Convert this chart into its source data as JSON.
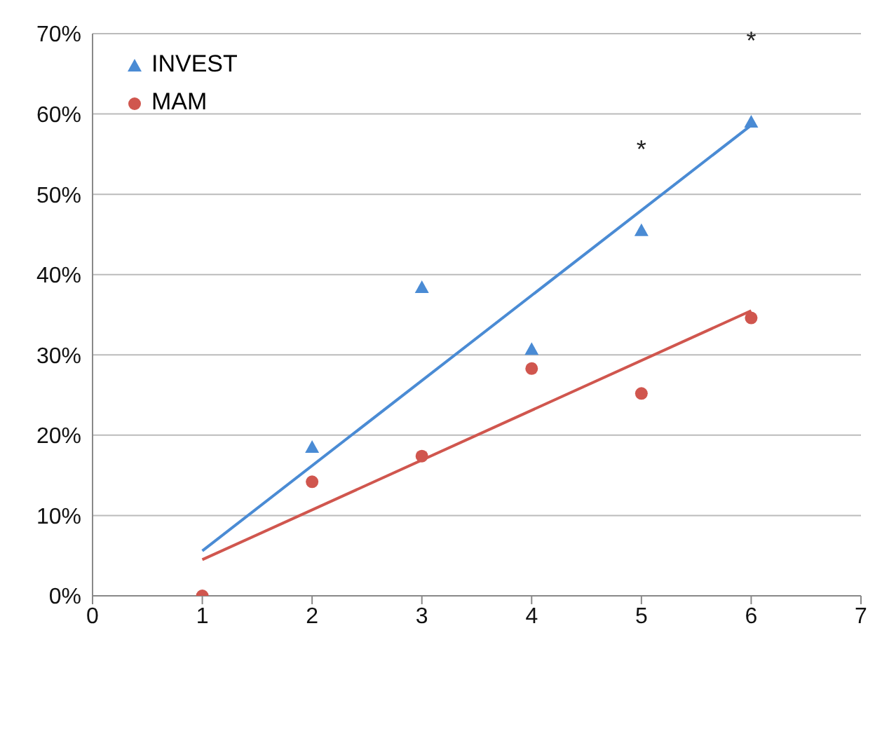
{
  "chart_data": {
    "type": "scatter",
    "xlim": [
      0,
      7
    ],
    "xticks": [
      0,
      1,
      2,
      3,
      4,
      5,
      6,
      7
    ],
    "ylim": [
      0,
      70
    ],
    "yticks": [
      {
        "value": 0,
        "label": "0%"
      },
      {
        "value": 10,
        "label": "10%"
      },
      {
        "value": 20,
        "label": "20%"
      },
      {
        "value": 30,
        "label": "30%"
      },
      {
        "value": 40,
        "label": "40%"
      },
      {
        "value": 50,
        "label": "50%"
      },
      {
        "value": 60,
        "label": "60%"
      },
      {
        "value": 70,
        "label": "70%"
      }
    ],
    "grid": "y",
    "legend": "top left",
    "series": [
      {
        "name": "INVEST",
        "color": "#4a8bd4",
        "marker": "triangle",
        "x": [
          2,
          3,
          4,
          5,
          6
        ],
        "values": [
          18.5,
          38.4,
          30.7,
          45.5,
          59.0
        ]
      },
      {
        "name": "MAM",
        "color": "#d0564e",
        "marker": "circle",
        "x": [
          1,
          2,
          3,
          4,
          5,
          6
        ],
        "values": [
          0,
          14.2,
          17.4,
          28.3,
          25.2,
          34.6
        ]
      },
      {
        "type": "line",
        "color": "#4a8bd4",
        "marker": "none",
        "x": [
          1,
          6
        ],
        "values": [
          5.6,
          58.6
        ]
      },
      {
        "type": "line",
        "color": "#d0564e",
        "marker": "none",
        "x": [
          1,
          6
        ],
        "values": [
          4.5,
          35.5
        ]
      }
    ],
    "annotations": [
      {
        "text": "*",
        "x": 5,
        "y": 45.5
      },
      {
        "text": "*",
        "x": 6,
        "y": 59.0
      }
    ]
  }
}
